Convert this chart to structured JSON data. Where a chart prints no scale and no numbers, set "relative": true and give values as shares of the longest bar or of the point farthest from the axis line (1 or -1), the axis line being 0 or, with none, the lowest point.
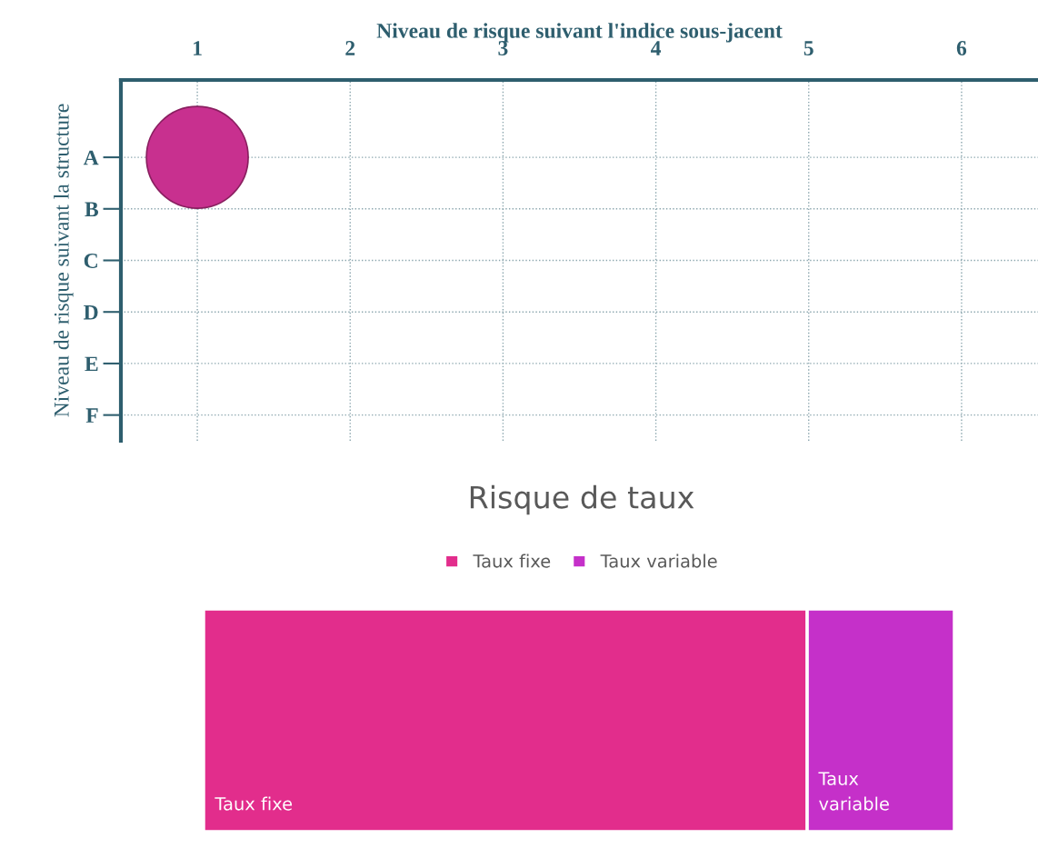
{
  "chart_data": [
    {
      "type": "bubble",
      "xlabel": "Niveau de risque suivant l'indice sous-jacent",
      "ylabel": "Niveau de risque suivant la structure",
      "orientation": "horizontal",
      "categories": [
        "A",
        "B",
        "C",
        "D",
        "E",
        "F"
      ],
      "values": [
        1,
        null,
        null,
        null,
        null,
        null
      ],
      "sizes": [
        1,
        null,
        null,
        null,
        null,
        null
      ],
      "color": "#c8308f",
      "xlim": [
        0.5,
        6.5
      ],
      "xticks": [
        1,
        2,
        3,
        4,
        5,
        6
      ],
      "grid": true
    },
    {
      "type": "bar",
      "title": "Risque de taux",
      "orientation": "horizontal",
      "stacked": true,
      "relative": true,
      "categories": [
        null
      ],
      "series": [
        {
          "name": "Taux fixe",
          "color": "#e22d8c",
          "values": [
            0.804
          ]
        },
        {
          "name": "Taux variable",
          "color": "#c530c9",
          "values": [
            0.196
          ]
        }
      ],
      "annotations": [
        "Taux fixe",
        "Taux\nvariable"
      ],
      "legend": "top"
    }
  ]
}
